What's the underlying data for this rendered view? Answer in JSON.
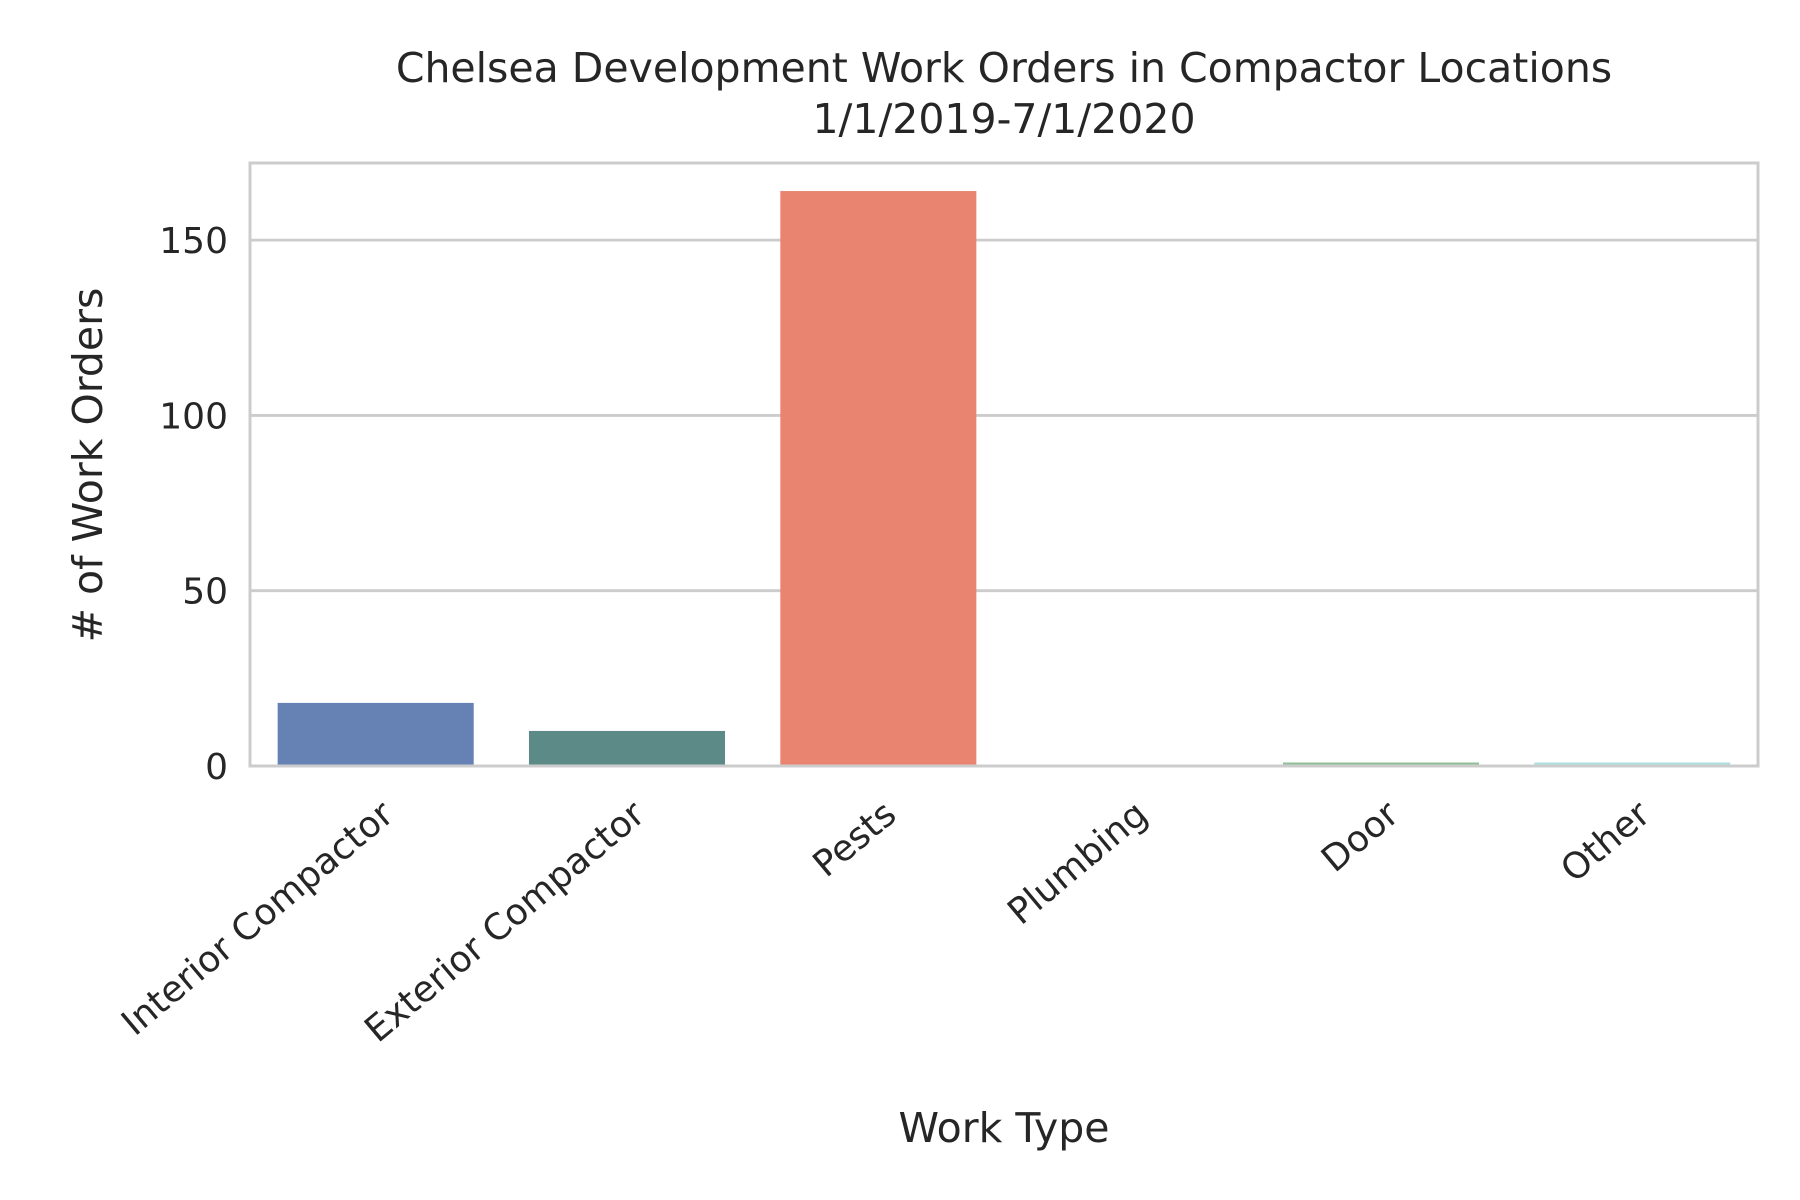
{
  "chart_data": {
    "type": "bar",
    "title": "Chelsea Development Work Orders in Compactor Locations",
    "subtitle": "1/1/2019-7/1/2020",
    "xlabel": "Work Type",
    "ylabel": "# of Work Orders",
    "categories": [
      "Interior Compactor",
      "Exterior Compactor",
      "Pests",
      "Plumbing",
      "Door",
      "Other"
    ],
    "values": [
      18,
      10,
      164,
      0,
      1,
      1
    ],
    "colors": [
      "#6681b3",
      "#5c8a87",
      "#e8846f",
      "#a9a9a9",
      "#8fbf99",
      "#aee0e3"
    ],
    "ylim": [
      0,
      172
    ],
    "yticks": [
      0,
      50,
      100,
      150
    ],
    "grid": "horizontal",
    "legend": "none"
  }
}
